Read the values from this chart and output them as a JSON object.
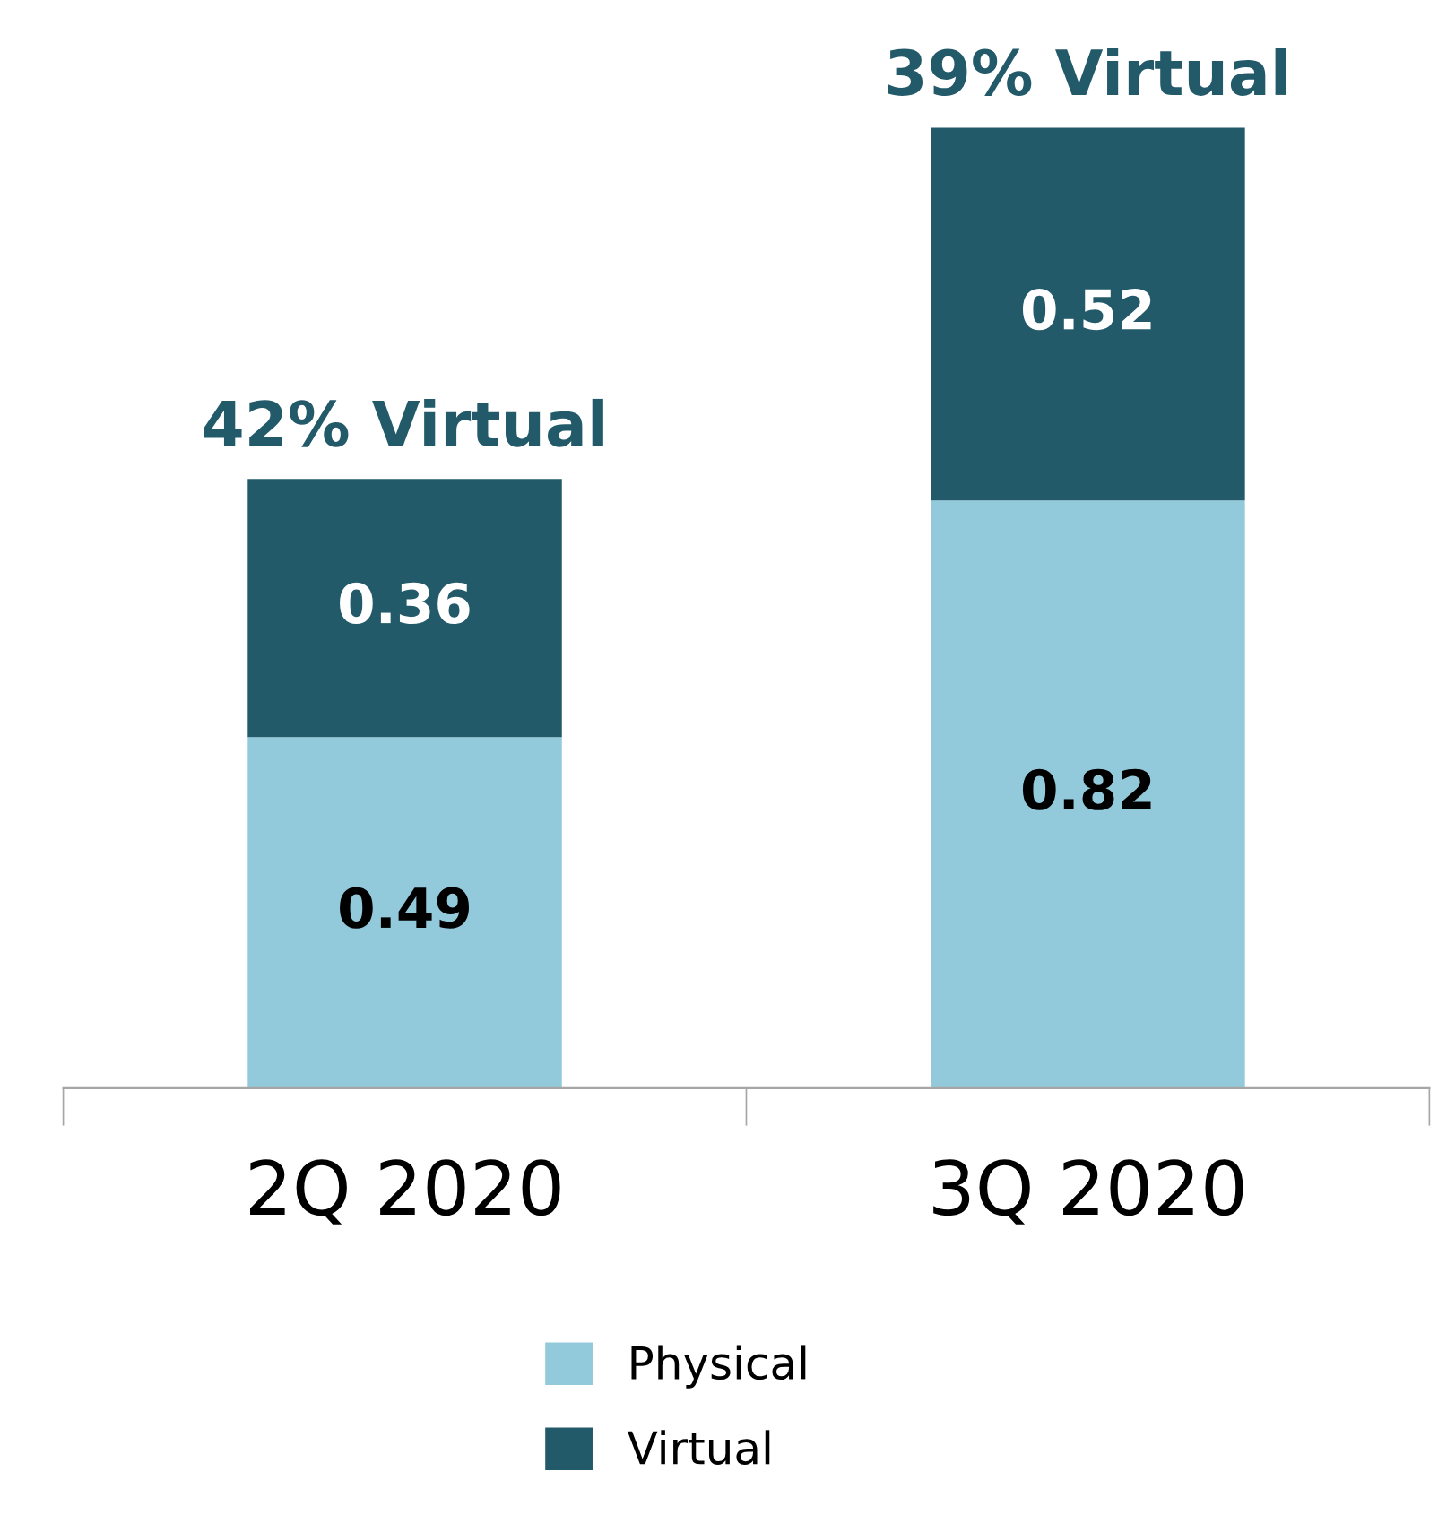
{
  "chart_data": {
    "type": "bar",
    "stacked": true,
    "categories": [
      "2Q 2020",
      "3Q 2020"
    ],
    "series": [
      {
        "name": "Physical",
        "color": "#93cadb",
        "values": [
          0.49,
          0.82
        ]
      },
      {
        "name": "Virtual",
        "color": "#225a6a",
        "values": [
          0.36,
          0.52
        ]
      }
    ],
    "data_labels": true,
    "legend": "bottom",
    "grid": false,
    "annotations": [
      {
        "text": "42% Virtual",
        "x": "2Q 2020",
        "y": 0.85
      },
      {
        "text": "39% Virtual",
        "x": "3Q 2020",
        "y": 1.34
      }
    ]
  }
}
